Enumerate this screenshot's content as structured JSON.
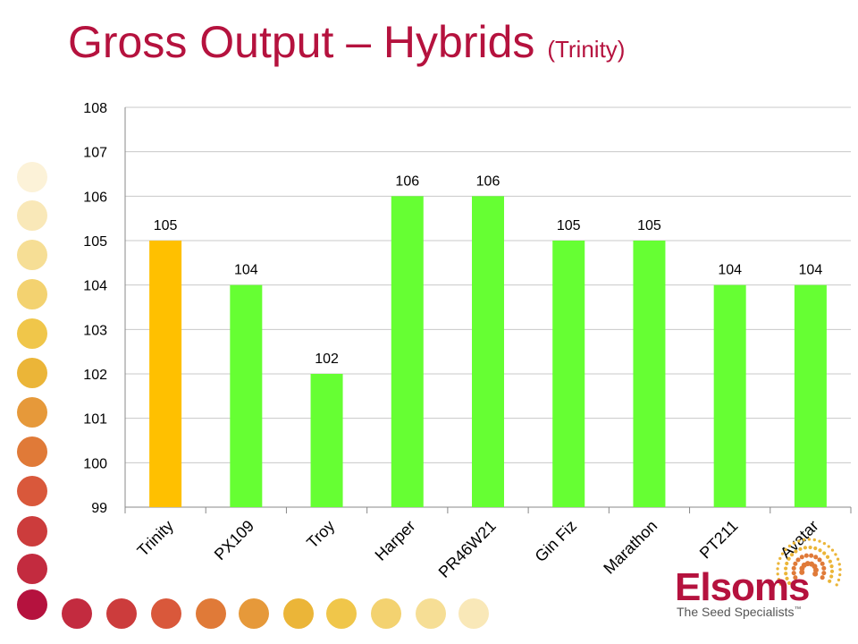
{
  "slide": {
    "title": "Gross Output – Hybrids",
    "subtitle": "(Trinity)"
  },
  "logo": {
    "brand": "Elsoms",
    "tagline": "The Seed Specialists",
    "trademark": "™"
  },
  "colors": {
    "title": "#b5123e",
    "reference_bar": "#ffc000",
    "comparison_bar": "#66ff33",
    "gridline": "#c8c8c8",
    "axis_text": "#000000"
  },
  "chart_data": {
    "type": "bar",
    "categories": [
      "Trinity",
      "PX109",
      "Troy",
      "Harper",
      "PR46W21",
      "Gin Fiz",
      "Marathon",
      "PT211",
      "Avatar"
    ],
    "values": [
      105,
      104,
      102,
      106,
      106,
      105,
      105,
      104,
      104
    ],
    "highlight_index": 0,
    "ylim": [
      99,
      108
    ],
    "yticks": [
      99,
      100,
      101,
      102,
      103,
      104,
      105,
      106,
      107,
      108
    ],
    "grid": true,
    "data_labels": true,
    "title": "",
    "xlabel": "",
    "ylabel": ""
  }
}
